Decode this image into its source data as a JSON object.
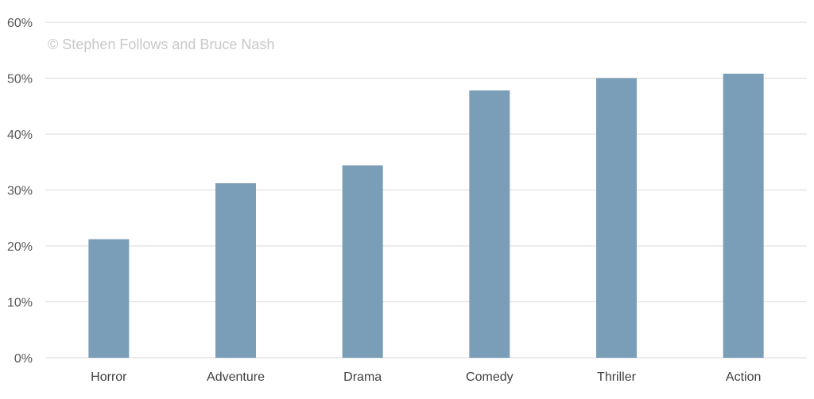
{
  "watermark": "© Stephen Follows and Bruce Nash",
  "colors": {
    "bar": "#7a9db8",
    "grid": "#d9d9d9",
    "text": "#404040"
  },
  "chart_data": {
    "type": "bar",
    "title": "",
    "xlabel": "",
    "ylabel": "",
    "categories": [
      "Horror",
      "Adventure",
      "Drama",
      "Comedy",
      "Thriller",
      "Action"
    ],
    "values": [
      21.2,
      31.2,
      34.4,
      47.8,
      50.0,
      50.8
    ],
    "value_format": "percent",
    "ylim": [
      0,
      60
    ],
    "yticks": [
      "0%",
      "10%",
      "20%",
      "30%",
      "40%",
      "50%",
      "60%"
    ],
    "grid": true,
    "legend": "none"
  }
}
